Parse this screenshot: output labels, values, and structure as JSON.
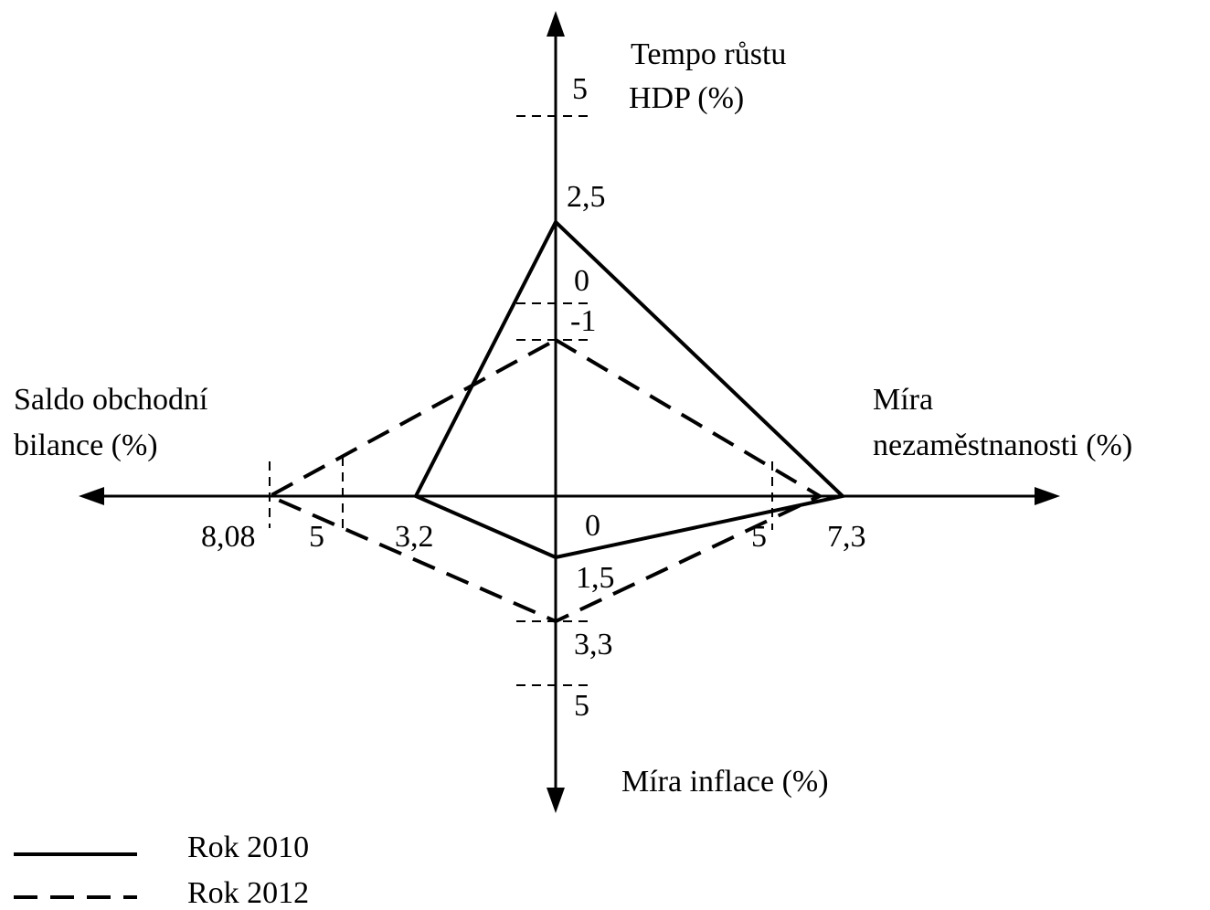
{
  "axes": {
    "top": {
      "label": [
        "Tempo růstu",
        "HDP (%)"
      ],
      "ticks": [
        "5",
        "2,5",
        "0",
        "-1"
      ]
    },
    "right": {
      "label": [
        "Míra",
        "nezaměstnanosti (%)"
      ],
      "ticks": [
        "5",
        "7,3"
      ]
    },
    "bottom": {
      "label": [
        "Míra inflace (%)"
      ],
      "ticks": [
        "0",
        "1,5",
        "3,3",
        "5"
      ]
    },
    "left": {
      "label": [
        "Saldo obchodní",
        "bilance (%)"
      ],
      "ticks": [
        "8,08",
        "5",
        "3,2"
      ]
    }
  },
  "legend": [
    "Rok 2010",
    "Rok 2012"
  ]
}
